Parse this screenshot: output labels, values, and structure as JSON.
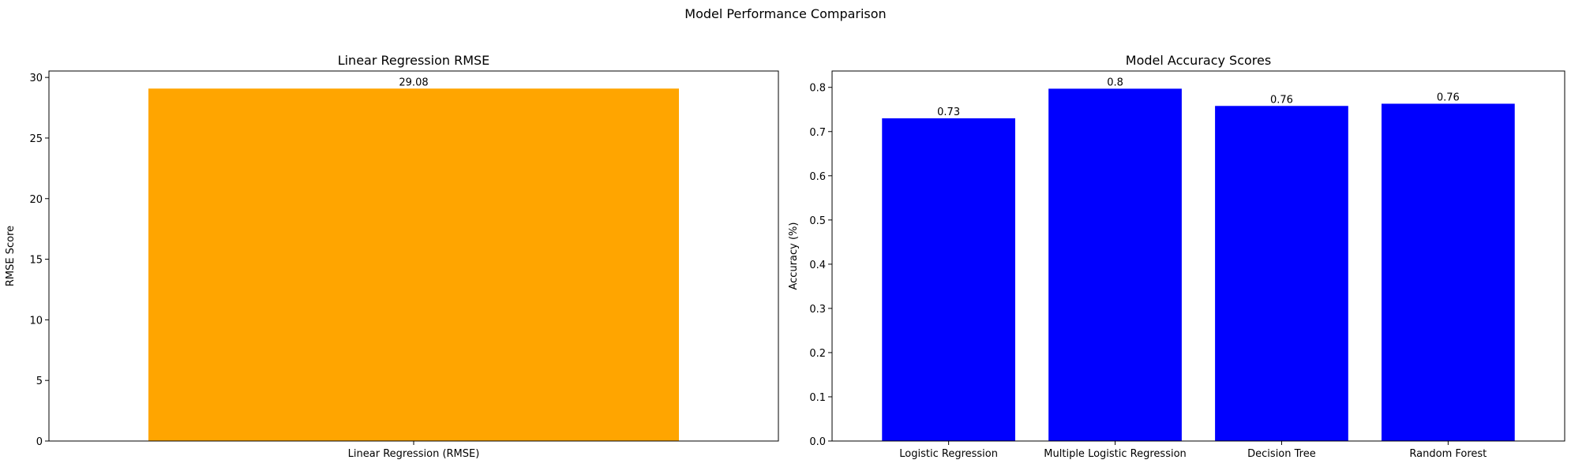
{
  "figure": {
    "title": "Model Performance Comparison"
  },
  "chart_data": [
    {
      "type": "bar",
      "title": "Linear Regression RMSE",
      "xlabel": "",
      "ylabel": "RMSE Score",
      "categories": [
        "Linear Regression (RMSE)"
      ],
      "values": [
        29.08
      ],
      "data_labels": [
        "29.08"
      ],
      "ylim": [
        0,
        30.53
      ],
      "yticks": [
        0,
        5,
        10,
        15,
        20,
        25,
        30
      ],
      "color": "#ffa500",
      "grid": false,
      "legend": "none"
    },
    {
      "type": "bar",
      "title": "Model Accuracy Scores",
      "xlabel": "",
      "ylabel": "Accuracy (%)",
      "categories": [
        "Logistic Regression",
        "Multiple Logistic Regression",
        "Decision Tree",
        "Random Forest"
      ],
      "values": [
        0.73,
        0.797,
        0.758,
        0.763
      ],
      "data_labels": [
        "0.73",
        "0.8",
        "0.76",
        "0.76"
      ],
      "ylim": [
        0,
        0.837
      ],
      "yticks": [
        0.0,
        0.1,
        0.2,
        0.3,
        0.4,
        0.5,
        0.6,
        0.7,
        0.8
      ],
      "color": "#0000ff",
      "grid": false,
      "legend": "none"
    }
  ]
}
